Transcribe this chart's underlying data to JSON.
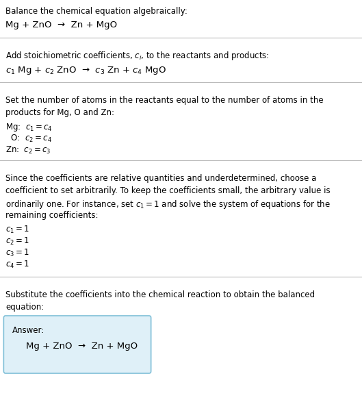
{
  "bg_color": "#ffffff",
  "text_color": "#000000",
  "section1_line1": "Balance the chemical equation algebraically:",
  "section1_line2": "Mg + ZnO  →  Zn + MgO",
  "section2_line1": "Add stoichiometric coefficients, $c_i$, to the reactants and products:",
  "section2_line2": "$c_1$ Mg + $c_2$ ZnO  →  $c_3$ Zn + $c_4$ MgO",
  "section3_line1": "Set the number of atoms in the reactants equal to the number of atoms in the",
  "section3_line2": "products for Mg, O and Zn:",
  "section3_eq1": "Mg:  $c_1 = c_4$",
  "section3_eq2": "  O:  $c_2 = c_4$",
  "section3_eq3": "Zn:  $c_2 = c_3$",
  "section4_line1": "Since the coefficients are relative quantities and underdetermined, choose a",
  "section4_line2": "coefficient to set arbitrarily. To keep the coefficients small, the arbitrary value is",
  "section4_line3": "ordinarily one. For instance, set $c_1 = 1$ and solve the system of equations for the",
  "section4_line4": "remaining coefficients:",
  "section4_eq1": "$c_1 = 1$",
  "section4_eq2": "$c_2 = 1$",
  "section4_eq3": "$c_3 = 1$",
  "section4_eq4": "$c_4 = 1$",
  "section5_line1": "Substitute the coefficients into the chemical reaction to obtain the balanced",
  "section5_line2": "equation:",
  "answer_label": "Answer:",
  "answer_eq": "Mg + ZnO  →  Zn + MgO",
  "answer_box_color": "#dff0f8",
  "answer_box_border": "#80c0d8",
  "divider_color": "#bbbbbb",
  "fs_body": 8.5,
  "fs_eq": 9.5
}
